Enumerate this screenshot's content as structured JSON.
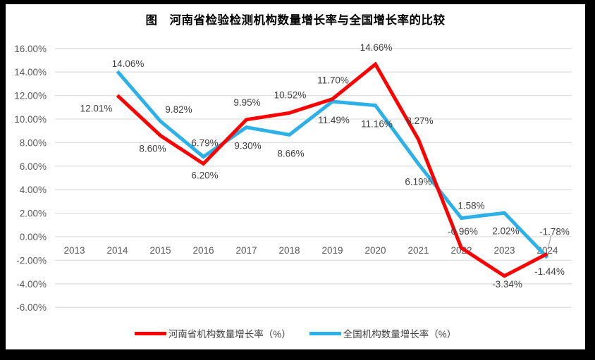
{
  "frame": {
    "background_color": "#000000",
    "page_background_color": "#FFFFFF"
  },
  "chart_data": {
    "type": "line",
    "title": "图　河南省检验检测机构数量增长率与全国增长率的比较",
    "categories": [
      "2013",
      "2014",
      "2015",
      "2016",
      "2017",
      "2018",
      "2019",
      "2020",
      "2021",
      "2022",
      "2023",
      "2024"
    ],
    "series": [
      {
        "name": "河南省机构数量增长率（%）",
        "color": "#FF0000",
        "values": [
          null,
          12.01,
          8.6,
          6.2,
          9.95,
          10.52,
          11.7,
          14.66,
          8.27,
          -0.96,
          -3.34,
          -1.44
        ]
      },
      {
        "name": "全国机构数量增长率（%）",
        "color": "#2BB1E7",
        "values": [
          null,
          14.06,
          9.82,
          6.79,
          9.3,
          8.66,
          11.49,
          11.16,
          6.19,
          1.58,
          2.02,
          -1.78
        ]
      }
    ],
    "ylim": [
      -6,
      16
    ],
    "ytick_step": 2,
    "ytick_labels": [
      "16.00%",
      "14.00%",
      "12.00%",
      "10.00%",
      "8.00%",
      "6.00%",
      "4.00%",
      "2.00%",
      "0.00%",
      "-2.00%",
      "-4.00%",
      "-6.00%"
    ],
    "grid": "horizontal",
    "legend_position": "bottom",
    "data_labels_shown": true,
    "axis_text_color": "#595959",
    "label_text_color": "#404040",
    "gridline_color": "#DEDEDE",
    "leader_line_color": "#A6A6A6"
  }
}
